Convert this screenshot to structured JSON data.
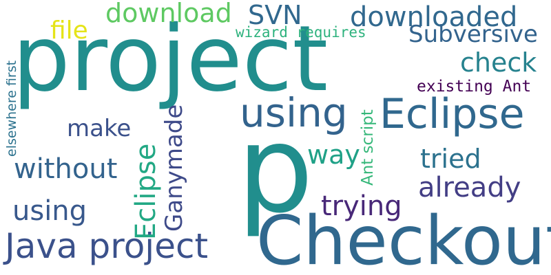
{
  "words": {
    "project": {
      "text": "project",
      "color": "#218e8d"
    },
    "p": {
      "text": "p",
      "color": "#218e8d"
    },
    "checkout": {
      "text": "Checkout",
      "color": "#30688e"
    },
    "eclipse": {
      "text": "Eclipse",
      "color": "#30688e"
    },
    "using1": {
      "text": "using",
      "color": "#33638d"
    },
    "java": {
      "text": "Java project",
      "color": "#3b518b"
    },
    "download": {
      "text": "download",
      "color": "#5ec962"
    },
    "svn": {
      "text": "SVN",
      "color": "#31688e"
    },
    "downloaded": {
      "text": "downloaded",
      "color": "#31688e"
    },
    "file": {
      "text": "file",
      "color": "#e5e419"
    },
    "wizard": {
      "text": "wizard requires",
      "color": "#2db27d"
    },
    "subversive": {
      "text": "Subversive",
      "color": "#33638d"
    },
    "check": {
      "text": "check",
      "color": "#26828e"
    },
    "existing": {
      "text": "existing Ant",
      "color": "#440154"
    },
    "make": {
      "text": "make",
      "color": "#3b518b"
    },
    "way": {
      "text": "way",
      "color": "#1fa187"
    },
    "tried": {
      "text": "tried",
      "color": "#2c728e"
    },
    "without": {
      "text": "without",
      "color": "#33638d"
    },
    "already": {
      "text": "already",
      "color": "#433e85"
    },
    "trying": {
      "text": "trying",
      "color": "#482878"
    },
    "using2": {
      "text": "using",
      "color": "#38588c"
    },
    "elsewhere": {
      "text": "elsewhere first",
      "color": "#2c728e"
    },
    "eclipse_v": {
      "text": "Eclipse",
      "color": "#22a884"
    },
    "ganymade": {
      "text": "Ganymade",
      "color": "#3e4a89"
    },
    "ant_script": {
      "text": "Ant script",
      "color": "#35b779"
    }
  }
}
